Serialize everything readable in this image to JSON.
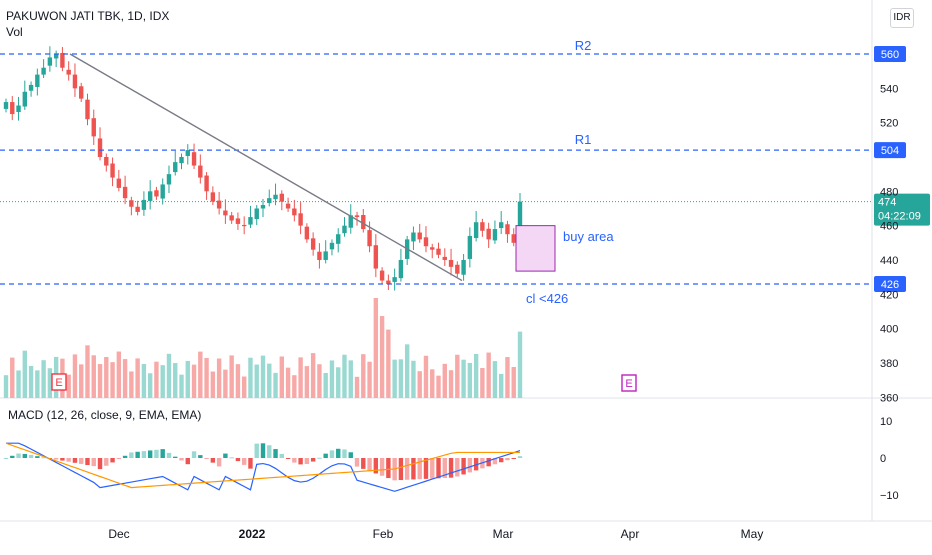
{
  "header": {
    "title": "PAKUWON JATI TBK, 1D, IDX",
    "volume_label": "Vol",
    "currency": "IDR"
  },
  "price_panel": {
    "y_ticks": [
      "560",
      "540",
      "520",
      "480",
      "460",
      "440",
      "420",
      "400",
      "380",
      "360"
    ],
    "levels": [
      {
        "name": "R2",
        "value": 560,
        "badge": "560"
      },
      {
        "name": "R1",
        "value": 504,
        "badge": "504"
      },
      {
        "name": "",
        "value": 426,
        "badge": "426"
      }
    ],
    "last_price": {
      "value": 474,
      "label": "474",
      "countdown": "04:22:09"
    },
    "annotations": {
      "r2": "R2",
      "r1": "R1",
      "buy_area": "buy area",
      "cut_loss": "cl <426"
    },
    "earnings_marker": "E",
    "upcoming_earnings_marker": "E"
  },
  "macd_panel": {
    "legend": "MACD (12, 26, close, 9, EMA, EMA)",
    "y_ticks": [
      "10",
      "0",
      "−10"
    ]
  },
  "x_axis": {
    "labels": [
      "Dec",
      "2022",
      "Feb",
      "Mar",
      "Apr",
      "May"
    ]
  },
  "colors": {
    "up": "#26a69a",
    "down": "#ef5350",
    "vol_up": "#9ad9d2",
    "vol_down": "#f7a9a7",
    "macd": "#2962ff",
    "signal": "#ff9800",
    "level": "#2962ff",
    "trendline": "#787b86",
    "buy_box_fill": "#f3d7f5",
    "buy_box_border": "#9c27b0"
  },
  "chart_data": {
    "type": "candlestick",
    "x_range": [
      "2021-11-01",
      "2022-05-31"
    ],
    "y_range": [
      355,
      582
    ],
    "close_series": [
      532,
      525,
      530,
      538,
      542,
      548,
      552,
      558,
      560,
      552,
      548,
      540,
      534,
      522,
      512,
      500,
      495,
      488,
      482,
      476,
      471,
      468,
      475,
      480,
      477,
      484,
      490,
      497,
      500,
      504,
      495,
      488,
      480,
      474,
      470,
      466,
      463,
      461,
      460,
      465,
      470,
      472,
      476,
      478,
      474,
      470,
      466,
      460,
      452,
      446,
      440,
      445,
      450,
      455,
      460,
      466,
      465,
      458,
      448,
      435,
      428,
      426,
      430,
      440,
      452,
      456,
      452,
      448,
      446,
      443,
      440,
      436,
      432,
      440,
      454,
      462,
      457,
      452,
      458,
      462,
      455,
      450,
      474
    ]
  }
}
